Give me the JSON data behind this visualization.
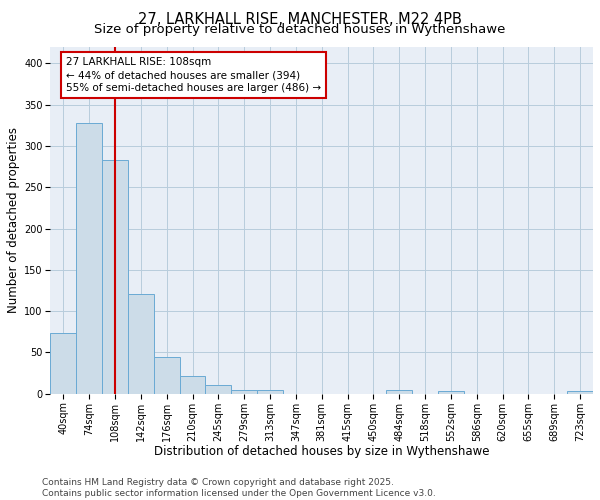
{
  "title1": "27, LARKHALL RISE, MANCHESTER, M22 4PB",
  "title2": "Size of property relative to detached houses in Wythenshawe",
  "xlabel": "Distribution of detached houses by size in Wythenshawe",
  "ylabel": "Number of detached properties",
  "categories": [
    "40sqm",
    "74sqm",
    "108sqm",
    "142sqm",
    "176sqm",
    "210sqm",
    "245sqm",
    "279sqm",
    "313sqm",
    "347sqm",
    "381sqm",
    "415sqm",
    "450sqm",
    "484sqm",
    "518sqm",
    "552sqm",
    "586sqm",
    "620sqm",
    "655sqm",
    "689sqm",
    "723sqm"
  ],
  "values": [
    74,
    328,
    283,
    121,
    44,
    21,
    11,
    4,
    4,
    0,
    0,
    0,
    0,
    5,
    0,
    3,
    0,
    0,
    0,
    0,
    3
  ],
  "bar_color": "#ccdce8",
  "bar_edge_color": "#6aaad4",
  "vline_x": 2,
  "vline_color": "#cc0000",
  "annotation_text": "27 LARKHALL RISE: 108sqm\n← 44% of detached houses are smaller (394)\n55% of semi-detached houses are larger (486) →",
  "annotation_box_color": "#cc0000",
  "ylim": [
    0,
    420
  ],
  "yticks": [
    0,
    50,
    100,
    150,
    200,
    250,
    300,
    350,
    400
  ],
  "grid_color": "#b8ccdc",
  "bg_color": "#e8eef6",
  "footer": "Contains HM Land Registry data © Crown copyright and database right 2025.\nContains public sector information licensed under the Open Government Licence v3.0.",
  "title_fontsize": 10.5,
  "subtitle_fontsize": 9.5,
  "xlabel_fontsize": 8.5,
  "ylabel_fontsize": 8.5,
  "tick_fontsize": 7,
  "annotation_fontsize": 7.5,
  "footer_fontsize": 6.5
}
